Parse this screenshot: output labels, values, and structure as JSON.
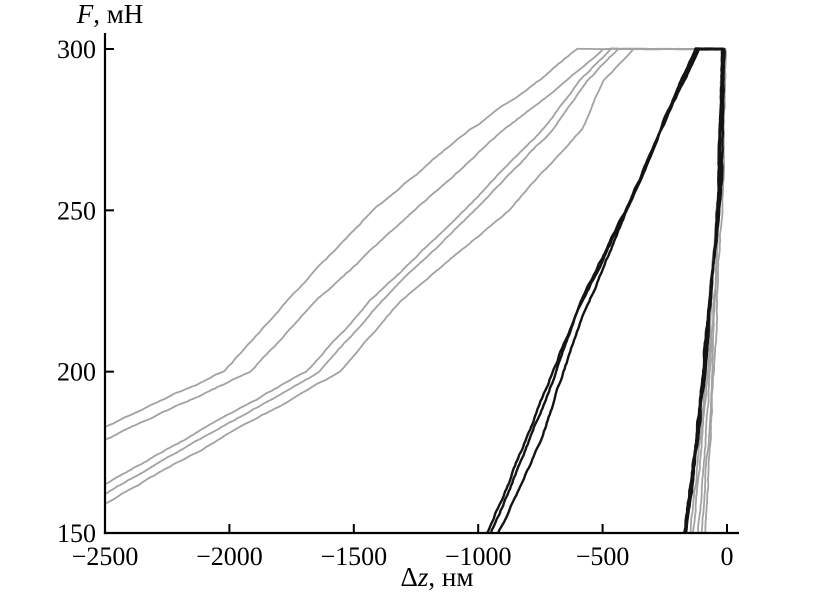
{
  "chart_data": {
    "type": "line",
    "title": "",
    "xlabel": "Δz, нм",
    "ylabel": "F, мН",
    "xlabel_parts": {
      "prefix": "Δ",
      "italic": "z",
      "suffix": ", нм"
    },
    "ylabel_parts": {
      "italic": "F",
      "suffix": ", мН"
    },
    "xlim": [
      -2500,
      0
    ],
    "ylim": [
      150,
      300
    ],
    "xticks": [
      {
        "v": -2500,
        "label": "−2500"
      },
      {
        "v": -2000,
        "label": "−2000"
      },
      {
        "v": -1500,
        "label": "−1500"
      },
      {
        "v": -1000,
        "label": "−1000"
      },
      {
        "v": -500,
        "label": "−500"
      },
      {
        "v": 0,
        "label": "0"
      }
    ],
    "yticks": [
      {
        "v": 300,
        "label": "300"
      },
      {
        "v": 250,
        "label": "250"
      },
      {
        "v": 200,
        "label": "200"
      },
      {
        "v": 150,
        "label": "150"
      }
    ],
    "grid": false,
    "legend": null,
    "background": "#ffffff",
    "axis_color": "#000000",
    "palette": {
      "gray": "#a2a2a2",
      "black": "#141414"
    },
    "series": [
      {
        "name": "gray-load-hold-unload-1",
        "color": "gray",
        "width": 1.8,
        "noise": 1.1,
        "points": [
          [
            -2500,
            183
          ],
          [
            -2022,
            200
          ],
          [
            -1765,
            222
          ],
          [
            -1427,
            250
          ],
          [
            -1035,
            275
          ],
          [
            -756,
            290
          ],
          [
            -599,
            300
          ],
          [
            -6,
            300
          ],
          [
            -16,
            260
          ],
          [
            -55,
            195
          ],
          [
            -88,
            150
          ]
        ]
      },
      {
        "name": "gray-load-hold-unload-2",
        "color": "gray",
        "width": 1.8,
        "noise": 1.1,
        "points": [
          [
            -2500,
            179
          ],
          [
            -1917,
            200
          ],
          [
            -1648,
            222
          ],
          [
            -1254,
            250
          ],
          [
            -900,
            275
          ],
          [
            -643,
            290
          ],
          [
            -502,
            300
          ],
          [
            -10,
            300
          ],
          [
            -22,
            258
          ],
          [
            -65,
            193
          ],
          [
            -100,
            150
          ]
        ]
      },
      {
        "name": "gray-load-hold-unload-3",
        "color": "gray",
        "width": 1.8,
        "noise": 1.1,
        "points": [
          [
            -2500,
            165
          ],
          [
            -1692,
            200
          ],
          [
            -1435,
            222
          ],
          [
            -1061,
            250
          ],
          [
            -740,
            275
          ],
          [
            -591,
            290
          ],
          [
            -462,
            300
          ],
          [
            -14,
            300
          ],
          [
            -28,
            257
          ],
          [
            -75,
            192
          ],
          [
            -117,
            150
          ]
        ]
      },
      {
        "name": "gray-load-hold-unload-4",
        "color": "gray",
        "width": 1.8,
        "noise": 1.1,
        "points": [
          [
            -2500,
            162
          ],
          [
            -1644,
            200
          ],
          [
            -1387,
            222
          ],
          [
            -1013,
            250
          ],
          [
            -699,
            275
          ],
          [
            -567,
            290
          ],
          [
            -438,
            300
          ],
          [
            -18,
            300
          ],
          [
            -34,
            256
          ],
          [
            -85,
            191
          ],
          [
            -133,
            150
          ]
        ]
      },
      {
        "name": "gray-load-hold-unload-5",
        "color": "gray",
        "width": 1.8,
        "noise": 1.1,
        "points": [
          [
            -2500,
            159
          ],
          [
            -1556,
            200
          ],
          [
            -1314,
            222
          ],
          [
            -880,
            250
          ],
          [
            -579,
            275
          ],
          [
            -498,
            290
          ],
          [
            -378,
            300
          ],
          [
            -22,
            300
          ],
          [
            -40,
            255
          ],
          [
            -95,
            190
          ],
          [
            -149,
            150
          ]
        ]
      },
      {
        "name": "black-load-hold-unload-1",
        "color": "black",
        "width": 2.4,
        "noise": 1.2,
        "points": [
          [
            -965,
            150
          ],
          [
            -790,
            182
          ],
          [
            -600,
            220
          ],
          [
            -400,
            251
          ],
          [
            -235,
            280
          ],
          [
            -117,
            300
          ],
          [
            -16,
            300
          ],
          [
            -30,
            258
          ],
          [
            -105,
            192
          ],
          [
            -169,
            150
          ]
        ]
      },
      {
        "name": "black-load-hold-unload-2",
        "color": "black",
        "width": 2.4,
        "noise": 1.2,
        "points": [
          [
            -920,
            150
          ],
          [
            -755,
            178
          ],
          [
            -590,
            215
          ],
          [
            -410,
            248
          ],
          [
            -242,
            280
          ],
          [
            -122,
            300
          ],
          [
            -12,
            300
          ],
          [
            -24,
            260
          ],
          [
            -98,
            194
          ],
          [
            -160,
            150
          ]
        ]
      },
      {
        "name": "black-load-hold-unload-3",
        "color": "black",
        "width": 2.4,
        "noise": 1.2,
        "points": [
          [
            -948,
            150
          ],
          [
            -783,
            181
          ],
          [
            -596,
            219
          ],
          [
            -405,
            250
          ],
          [
            -238,
            279
          ],
          [
            -118,
            300
          ],
          [
            -20,
            300
          ],
          [
            -32,
            257
          ],
          [
            -107,
            191
          ],
          [
            -171,
            150
          ]
        ]
      }
    ]
  }
}
